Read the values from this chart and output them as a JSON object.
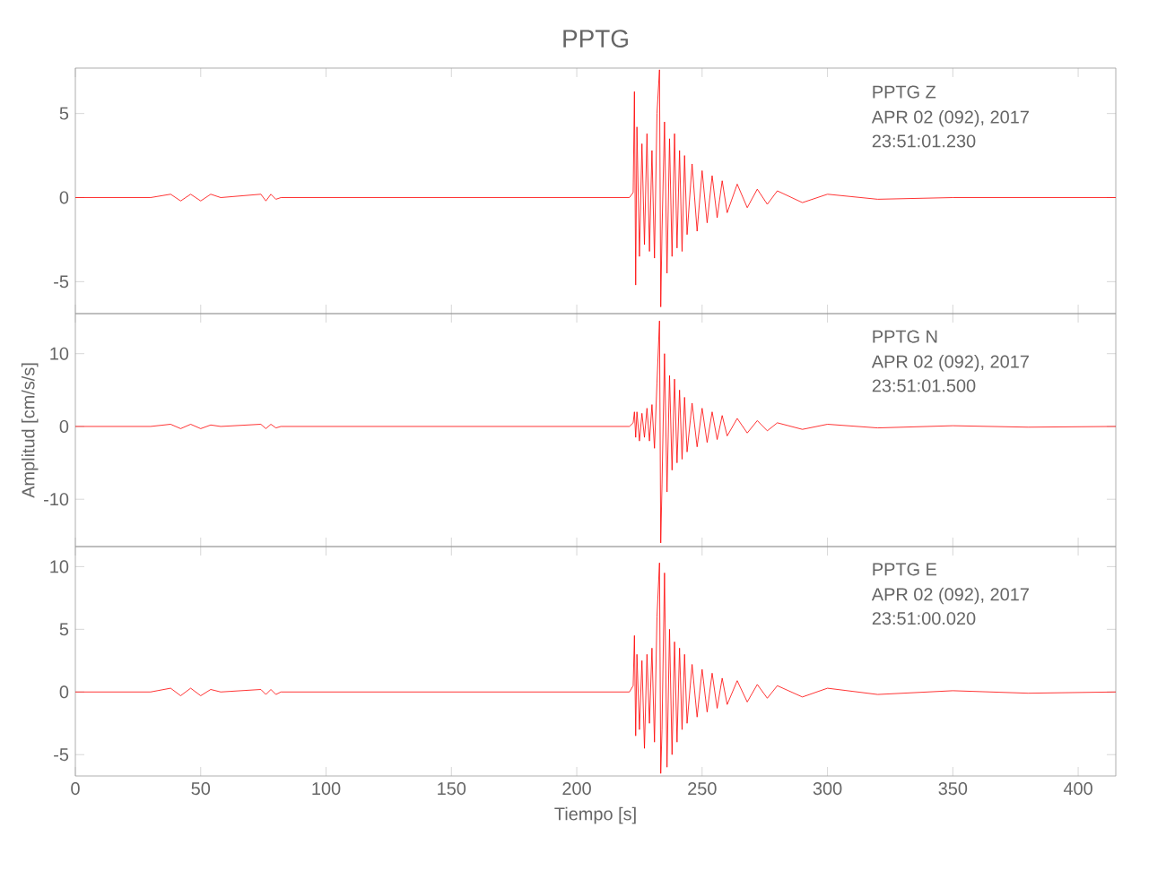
{
  "chart_data": [
    {
      "type": "line",
      "title": "PPTG",
      "annotations": [
        "PPTG Z",
        "APR 02 (092), 2017",
        "23:51:01.230"
      ],
      "xlim": [
        0,
        415
      ],
      "xticks": [
        0,
        50,
        100,
        150,
        200,
        250,
        300,
        350,
        400
      ],
      "ylim": [
        -6.9,
        7.7
      ],
      "yticks": [
        -5,
        0,
        5
      ],
      "tick_labels": "y",
      "x": [
        0,
        30,
        38,
        42,
        46,
        50,
        54,
        58,
        74,
        76,
        78,
        80,
        82,
        120,
        180,
        221,
        222.5,
        223,
        223.5,
        224,
        225,
        226,
        227,
        228,
        229,
        230,
        231,
        232,
        233,
        233.5,
        234,
        235,
        236,
        237,
        238,
        239,
        240,
        241,
        242,
        243,
        244,
        246,
        248,
        250,
        252,
        254,
        256,
        258,
        260,
        264,
        268,
        272,
        276,
        280,
        290,
        300,
        320,
        350,
        380,
        415
      ],
      "series": [
        {
          "color": "#ff0000",
          "values": [
            0,
            0,
            0.2,
            -0.2,
            0.2,
            -0.2,
            0.2,
            0,
            0.2,
            -0.2,
            0.2,
            -0.1,
            0,
            0,
            0,
            0,
            0.3,
            6.3,
            -5.2,
            4.2,
            -3.5,
            3.2,
            -2.8,
            3.8,
            -3.2,
            2.8,
            -3.6,
            5,
            7.6,
            -6.5,
            -2,
            4.5,
            -4.5,
            3.5,
            -3.5,
            3.8,
            -3,
            2.8,
            -3.2,
            2.5,
            -2.2,
            2,
            -2,
            1.6,
            -1.5,
            1.3,
            -1.2,
            1,
            -0.9,
            0.8,
            -0.6,
            0.5,
            -0.4,
            0.4,
            -0.3,
            0.2,
            -0.1,
            0,
            0,
            0
          ]
        }
      ]
    },
    {
      "type": "line",
      "ylabel": "Amplitud [cm/s/s]",
      "annotations": [
        "PPTG N",
        "APR 02 (092), 2017",
        "23:51:01.500"
      ],
      "xlim": [
        0,
        415
      ],
      "xticks": [
        0,
        50,
        100,
        150,
        200,
        250,
        300,
        350,
        400
      ],
      "ylim": [
        -16.5,
        15.5
      ],
      "yticks": [
        -10,
        0,
        10
      ],
      "tick_labels": "y",
      "x": [
        0,
        30,
        38,
        42,
        46,
        50,
        54,
        58,
        74,
        76,
        78,
        80,
        82,
        120,
        180,
        221,
        222.5,
        223,
        223.5,
        224,
        225,
        226,
        227,
        228,
        229,
        230,
        231,
        232,
        233,
        233.5,
        234,
        235,
        236,
        237,
        238,
        239,
        240,
        241,
        242,
        243,
        244,
        246,
        248,
        250,
        252,
        254,
        256,
        258,
        260,
        264,
        268,
        272,
        276,
        280,
        290,
        300,
        320,
        350,
        380,
        415
      ],
      "series": [
        {
          "color": "#ff0000",
          "values": [
            0,
            0,
            0.3,
            -0.3,
            0.3,
            -0.3,
            0.2,
            0,
            0.3,
            -0.3,
            0.3,
            -0.2,
            0,
            0,
            0,
            0,
            0.5,
            2,
            -1.5,
            2,
            -2,
            1.8,
            -1.5,
            2.5,
            -2,
            3,
            -3,
            6,
            14.5,
            -16,
            -8,
            10,
            -9,
            7,
            -6,
            6.5,
            -5,
            5,
            -4.5,
            4,
            -3.5,
            3.2,
            -2.8,
            2.5,
            -2.2,
            2,
            -1.8,
            1.5,
            -1.3,
            1.1,
            -0.9,
            0.8,
            -0.6,
            0.5,
            -0.4,
            0.3,
            -0.2,
            0.1,
            -0.1,
            0
          ]
        }
      ]
    },
    {
      "type": "line",
      "xlabel": "Tiempo [s]",
      "annotations": [
        "PPTG E",
        "APR 02 (092), 2017",
        "23:51:00.020"
      ],
      "xlim": [
        0,
        415
      ],
      "xticks": [
        0,
        50,
        100,
        150,
        200,
        250,
        300,
        350,
        400
      ],
      "ylim": [
        -6.7,
        11.6
      ],
      "yticks": [
        -5,
        0,
        5,
        10
      ],
      "x": [
        0,
        30,
        38,
        42,
        46,
        50,
        54,
        58,
        74,
        76,
        78,
        80,
        82,
        120,
        180,
        221,
        222.5,
        223,
        223.5,
        224,
        225,
        226,
        227,
        228,
        229,
        230,
        231,
        232,
        233,
        233.5,
        234,
        235,
        236,
        237,
        238,
        239,
        240,
        241,
        242,
        243,
        244,
        246,
        248,
        250,
        252,
        254,
        256,
        258,
        260,
        264,
        268,
        272,
        276,
        280,
        290,
        300,
        320,
        350,
        380,
        415
      ],
      "series": [
        {
          "color": "#ff0000",
          "values": [
            0,
            0,
            0.3,
            -0.3,
            0.3,
            -0.3,
            0.2,
            0,
            0.2,
            -0.2,
            0.2,
            -0.2,
            0,
            0,
            0,
            0,
            0.5,
            4.5,
            -3.5,
            3,
            -3,
            2.5,
            -4.5,
            3,
            -2.5,
            3.5,
            -4,
            6,
            10.3,
            -6.5,
            -3,
            9.5,
            -6,
            5,
            -5,
            4,
            -4,
            3.5,
            -3,
            3,
            -2.5,
            2.2,
            -2,
            1.8,
            -1.6,
            1.5,
            -1.3,
            1.1,
            -1,
            0.9,
            -0.8,
            0.6,
            -0.5,
            0.5,
            -0.4,
            0.3,
            -0.2,
            0.1,
            -0.1,
            0
          ]
        }
      ]
    }
  ]
}
